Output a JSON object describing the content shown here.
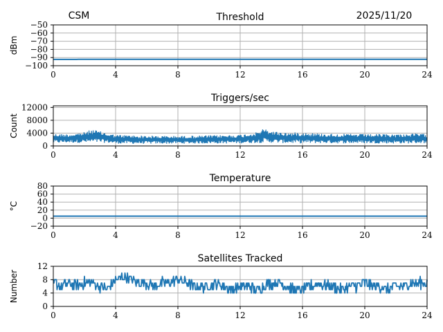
{
  "header": {
    "station": "CSM",
    "date": "2025/11/20"
  },
  "style": {
    "line_color": "#1f77b4",
    "grid_color": "#b0b0b0",
    "axis_color": "#000000"
  },
  "chart_data": [
    {
      "type": "line",
      "title": "Threshold",
      "xlabel": "",
      "ylabel": "dBm",
      "xlim": [
        0,
        24
      ],
      "ylim": [
        -100,
        -50
      ],
      "xticks": [
        0,
        4,
        8,
        12,
        16,
        20,
        24
      ],
      "yticks": [
        -100,
        -90,
        -80,
        -70,
        -60,
        -50
      ],
      "ytick_labels": [
        "−100",
        "−90",
        "−80",
        "−70",
        "−60",
        "−50"
      ],
      "grid": true,
      "series": [
        {
          "x": [
            0,
            1.5,
            1.6,
            6,
            12,
            18,
            24
          ],
          "y": [
            -92.3,
            -92.3,
            -92.2,
            -92.2,
            -92.2,
            -92.2,
            -92.2
          ]
        }
      ]
    },
    {
      "type": "line",
      "title": "Triggers/sec",
      "xlabel": "",
      "ylabel": "Count",
      "xlim": [
        0,
        24
      ],
      "ylim": [
        0,
        12500
      ],
      "xticks": [
        0,
        4,
        8,
        12,
        16,
        20,
        24
      ],
      "yticks": [
        0,
        4000,
        8000,
        12000
      ],
      "ytick_labels": [
        "0",
        "4000",
        "8000",
        "12000"
      ],
      "grid": true,
      "noise_band": true,
      "series": [
        {
          "x": [
            0,
            1,
            2,
            2.5,
            3,
            3.5,
            4,
            6,
            8,
            10,
            12,
            13,
            13.5,
            14,
            15,
            16,
            17,
            18,
            20,
            22,
            23.5,
            24
          ],
          "hi": [
            3800,
            3700,
            4300,
            5200,
            4600,
            3900,
            3500,
            3200,
            3100,
            3300,
            3500,
            4200,
            5400,
            4700,
            4100,
            4300,
            3900,
            3800,
            3700,
            3700,
            3900,
            3700
          ],
          "lo": [
            900,
            1000,
            950,
            900,
            1000,
            950,
            700,
            650,
            700,
            750,
            800,
            900,
            1000,
            950,
            850,
            800,
            850,
            800,
            800,
            750,
            800,
            800
          ]
        }
      ]
    },
    {
      "type": "line",
      "title": "Temperature",
      "xlabel": "",
      "ylabel": "°C",
      "xlim": [
        0,
        24
      ],
      "ylim": [
        -20,
        80
      ],
      "xticks": [
        0,
        4,
        8,
        12,
        16,
        20,
        24
      ],
      "yticks": [
        -20,
        0,
        20,
        40,
        60,
        80
      ],
      "ytick_labels": [
        "−20",
        "0",
        "20",
        "40",
        "60",
        "80"
      ],
      "grid": true,
      "series": [
        {
          "x": [
            0,
            6,
            12,
            18,
            24
          ],
          "y": [
            5,
            5,
            5,
            5,
            5
          ]
        }
      ]
    },
    {
      "type": "line",
      "title": "Satellites Tracked",
      "xlabel": "",
      "ylabel": "Number",
      "xlim": [
        0,
        24
      ],
      "ylim": [
        0,
        12
      ],
      "xticks": [
        0,
        4,
        8,
        12,
        16,
        20,
        24
      ],
      "yticks": [
        0,
        4,
        8,
        12
      ],
      "ytick_labels": [
        "0",
        "4",
        "8",
        "12"
      ],
      "grid": true,
      "series": [
        {
          "x": [
            0,
            0.5,
            1,
            1.5,
            2,
            2.5,
            3,
            3.5,
            4,
            4.5,
            5,
            5.5,
            6,
            6.5,
            7,
            7.5,
            8,
            8.5,
            9,
            9.5,
            10,
            10.5,
            11,
            11.5,
            12,
            12.5,
            13,
            13.5,
            14,
            14.5,
            15,
            15.5,
            16,
            16.5,
            17,
            17.5,
            18,
            18.5,
            19,
            19.5,
            20,
            20.5,
            21,
            21.5,
            22,
            22.5,
            23,
            23.5,
            24
          ],
          "y": [
            7,
            6,
            7,
            6,
            7,
            7,
            6,
            5,
            8,
            9,
            8,
            7,
            7,
            6,
            7,
            7,
            8,
            7,
            6,
            6,
            6,
            7,
            6,
            5,
            6,
            6,
            5,
            6,
            7,
            7,
            6,
            5,
            5,
            6,
            7,
            6,
            6,
            5,
            6,
            6,
            7,
            6,
            6,
            5,
            6,
            6,
            7,
            7,
            7
          ]
        }
      ]
    }
  ]
}
